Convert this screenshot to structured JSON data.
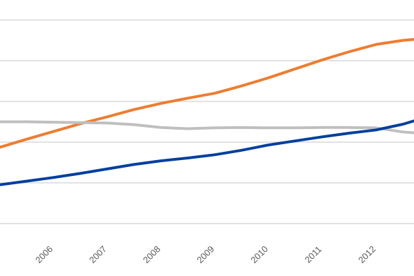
{
  "chart_data": {
    "type": "line",
    "categories": [
      "2006",
      "2007",
      "2008",
      "2009",
      "2010",
      "2011",
      "2012"
    ],
    "ylim": [
      0,
      5
    ],
    "grid": true,
    "series": [
      {
        "color": "#ED7D31",
        "x": [
          2005,
          2005.5,
          2006,
          2006.5,
          2007,
          2007.5,
          2008,
          2008.5,
          2009,
          2009.5,
          2010,
          2010.5,
          2011,
          2011.5,
          2012,
          2012.5,
          2013
        ],
        "values": [
          1.87,
          2.07,
          2.26,
          2.45,
          2.62,
          2.8,
          2.95,
          3.08,
          3.2,
          3.38,
          3.58,
          3.8,
          4.02,
          4.22,
          4.4,
          4.5,
          4.56
        ]
      },
      {
        "color": "#BFBFBF",
        "x": [
          2005,
          2005.5,
          2006,
          2006.5,
          2007,
          2007.5,
          2008,
          2008.5,
          2009,
          2009.5,
          2010,
          2010.5,
          2011,
          2011.5,
          2012,
          2012.5,
          2013
        ],
        "values": [
          2.5,
          2.5,
          2.49,
          2.48,
          2.47,
          2.43,
          2.36,
          2.33,
          2.35,
          2.36,
          2.35,
          2.35,
          2.36,
          2.36,
          2.35,
          2.25,
          2.2
        ]
      },
      {
        "color": "#003F9E",
        "x": [
          2005,
          2005.5,
          2006,
          2006.5,
          2007,
          2007.5,
          2008,
          2008.5,
          2009,
          2009.5,
          2010,
          2010.5,
          2011,
          2011.5,
          2012,
          2012.5,
          2013
        ],
        "values": [
          0.95,
          1.04,
          1.13,
          1.23,
          1.34,
          1.45,
          1.54,
          1.61,
          1.69,
          1.8,
          1.93,
          2.03,
          2.13,
          2.22,
          2.3,
          2.44,
          2.64
        ]
      }
    ]
  }
}
